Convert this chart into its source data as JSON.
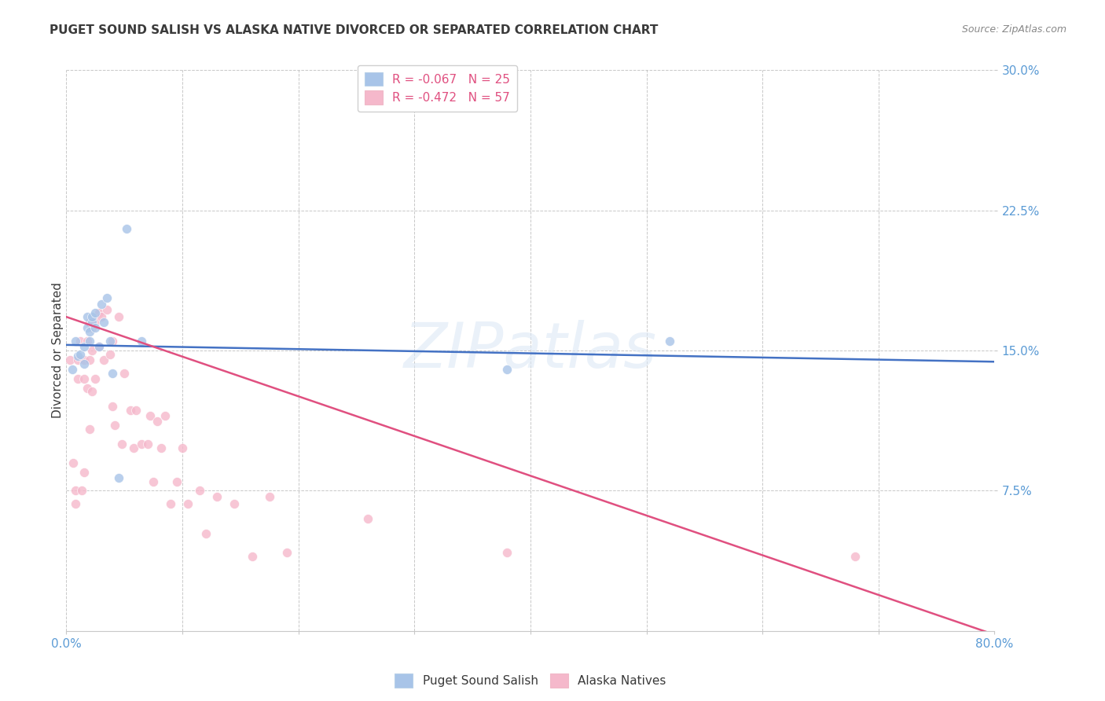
{
  "title": "PUGET SOUND SALISH VS ALASKA NATIVE DIVORCED OR SEPARATED CORRELATION CHART",
  "source": "Source: ZipAtlas.com",
  "ylabel": "Divorced or Separated",
  "xlim": [
    0.0,
    0.8
  ],
  "ylim": [
    0.0,
    0.3
  ],
  "xticks": [
    0.0,
    0.1,
    0.2,
    0.3,
    0.4,
    0.5,
    0.6,
    0.7,
    0.8
  ],
  "yticks": [
    0.075,
    0.15,
    0.225,
    0.3
  ],
  "xtick_labels_show": [
    "0.0%",
    "",
    "",
    "",
    "",
    "",
    "",
    "",
    "80.0%"
  ],
  "ytick_labels": [
    "7.5%",
    "15.0%",
    "22.5%",
    "30.0%"
  ],
  "legend1_label1": "R = -0.067",
  "legend1_n1": "N = 25",
  "legend1_label2": "R = -0.472",
  "legend1_n2": "N = 57",
  "legend2_label1": "Puget Sound Salish",
  "legend2_label2": "Alaska Natives",
  "blue_scatter_x": [
    0.005,
    0.008,
    0.01,
    0.012,
    0.015,
    0.015,
    0.018,
    0.018,
    0.02,
    0.02,
    0.022,
    0.022,
    0.025,
    0.025,
    0.028,
    0.03,
    0.032,
    0.035,
    0.038,
    0.04,
    0.045,
    0.052,
    0.065,
    0.38,
    0.52
  ],
  "blue_scatter_y": [
    0.14,
    0.155,
    0.147,
    0.148,
    0.152,
    0.143,
    0.162,
    0.168,
    0.16,
    0.155,
    0.165,
    0.168,
    0.17,
    0.162,
    0.152,
    0.175,
    0.165,
    0.178,
    0.155,
    0.138,
    0.082,
    0.215,
    0.155,
    0.14,
    0.155
  ],
  "pink_scatter_x": [
    0.003,
    0.006,
    0.008,
    0.008,
    0.01,
    0.01,
    0.012,
    0.013,
    0.015,
    0.015,
    0.015,
    0.018,
    0.018,
    0.02,
    0.02,
    0.02,
    0.022,
    0.022,
    0.022,
    0.025,
    0.025,
    0.028,
    0.028,
    0.03,
    0.032,
    0.035,
    0.038,
    0.04,
    0.04,
    0.042,
    0.045,
    0.048,
    0.05,
    0.055,
    0.058,
    0.06,
    0.065,
    0.07,
    0.072,
    0.075,
    0.078,
    0.082,
    0.085,
    0.09,
    0.095,
    0.1,
    0.105,
    0.115,
    0.12,
    0.13,
    0.145,
    0.16,
    0.175,
    0.19,
    0.26,
    0.38,
    0.68
  ],
  "pink_scatter_y": [
    0.145,
    0.09,
    0.075,
    0.068,
    0.145,
    0.135,
    0.155,
    0.075,
    0.145,
    0.135,
    0.085,
    0.155,
    0.13,
    0.165,
    0.145,
    0.108,
    0.162,
    0.15,
    0.128,
    0.135,
    0.165,
    0.17,
    0.152,
    0.168,
    0.145,
    0.172,
    0.148,
    0.155,
    0.12,
    0.11,
    0.168,
    0.1,
    0.138,
    0.118,
    0.098,
    0.118,
    0.1,
    0.1,
    0.115,
    0.08,
    0.112,
    0.098,
    0.115,
    0.068,
    0.08,
    0.098,
    0.068,
    0.075,
    0.052,
    0.072,
    0.068,
    0.04,
    0.072,
    0.042,
    0.06,
    0.042,
    0.04
  ],
  "blue_line_x": [
    0.0,
    0.8
  ],
  "blue_line_y": [
    0.153,
    0.144
  ],
  "pink_line_x": [
    0.0,
    0.8
  ],
  "pink_line_y": [
    0.168,
    -0.002
  ],
  "watermark_text": "ZIPatlas",
  "title_color": "#3a3a3a",
  "axis_tick_color": "#5b9bd5",
  "grid_color": "#c8c8c8",
  "blue_dot_color": "#a8c4e8",
  "pink_dot_color": "#f5b8cb",
  "blue_line_color": "#4472c4",
  "pink_line_color": "#e05080",
  "legend_r_color": "#e05080",
  "legend_n_color": "#5b9bd5",
  "dot_size": 75,
  "dot_alpha": 0.8,
  "dot_edgecolor": "white",
  "dot_linewidth": 0.5
}
